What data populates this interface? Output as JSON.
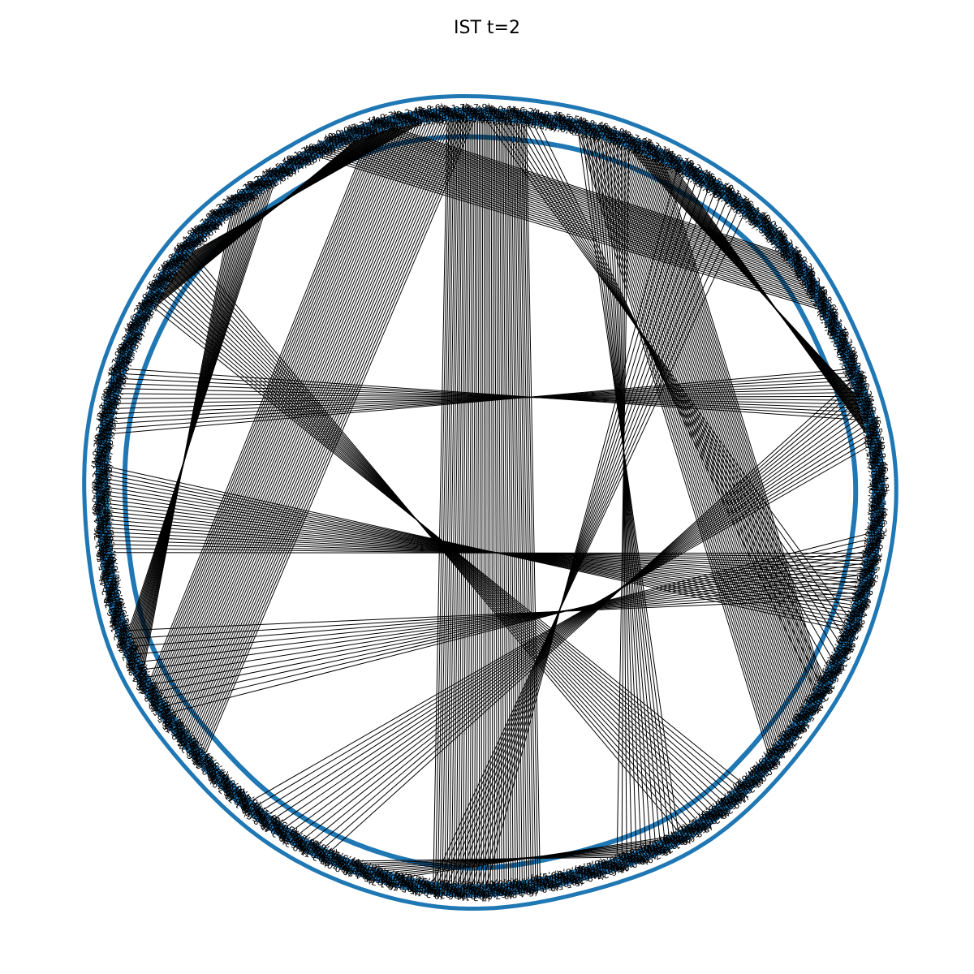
{
  "title": "IST t=2",
  "colors": {
    "node": "#1f77b4",
    "edge": "#000000",
    "label": "#000000",
    "background": "#ffffff"
  },
  "graph": {
    "layout": "circular",
    "node_labels_visible": true
  }
}
